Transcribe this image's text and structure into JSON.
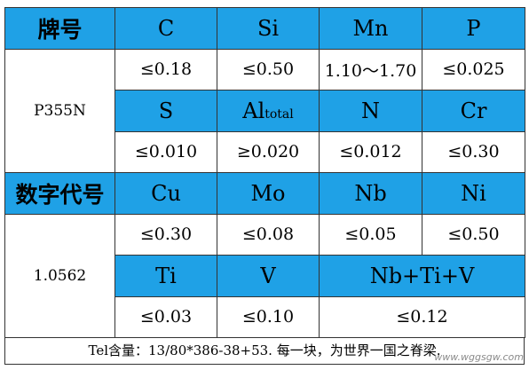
{
  "header": {
    "grade_label": "牌号",
    "cols": [
      "C",
      "Si",
      "Mn",
      "P"
    ]
  },
  "grade": "P355N",
  "row1_values": [
    "≤0.18",
    "≤0.50",
    "1.10～1.70",
    "≤0.025"
  ],
  "row2_headers": {
    "s": "S",
    "al_main": "Al",
    "al_sub": "total",
    "n": "N",
    "cr": "Cr"
  },
  "row2_values": [
    "≤0.010",
    "≥0.020",
    "≤0.012",
    "≤0.30"
  ],
  "number_label": "数字代号",
  "row3_headers": [
    "Cu",
    "Mo",
    "Nb",
    "Ni"
  ],
  "number": "1.0562",
  "row3_values": [
    "≤0.30",
    "≤0.08",
    "≤0.05",
    "≤0.50"
  ],
  "row4_headers": [
    "Ti",
    "V",
    "Nb+Ti+V"
  ],
  "row4_values": [
    "≤0.03",
    "≤0.10",
    "≤0.12"
  ],
  "note": "Tel含量：13/80*386-38+53. 每一块，为世界一国之脊梁.",
  "watermark": "www.wggsgw.com",
  "colors": {
    "header_bg": "#1fa1e6",
    "border": "#333333"
  }
}
